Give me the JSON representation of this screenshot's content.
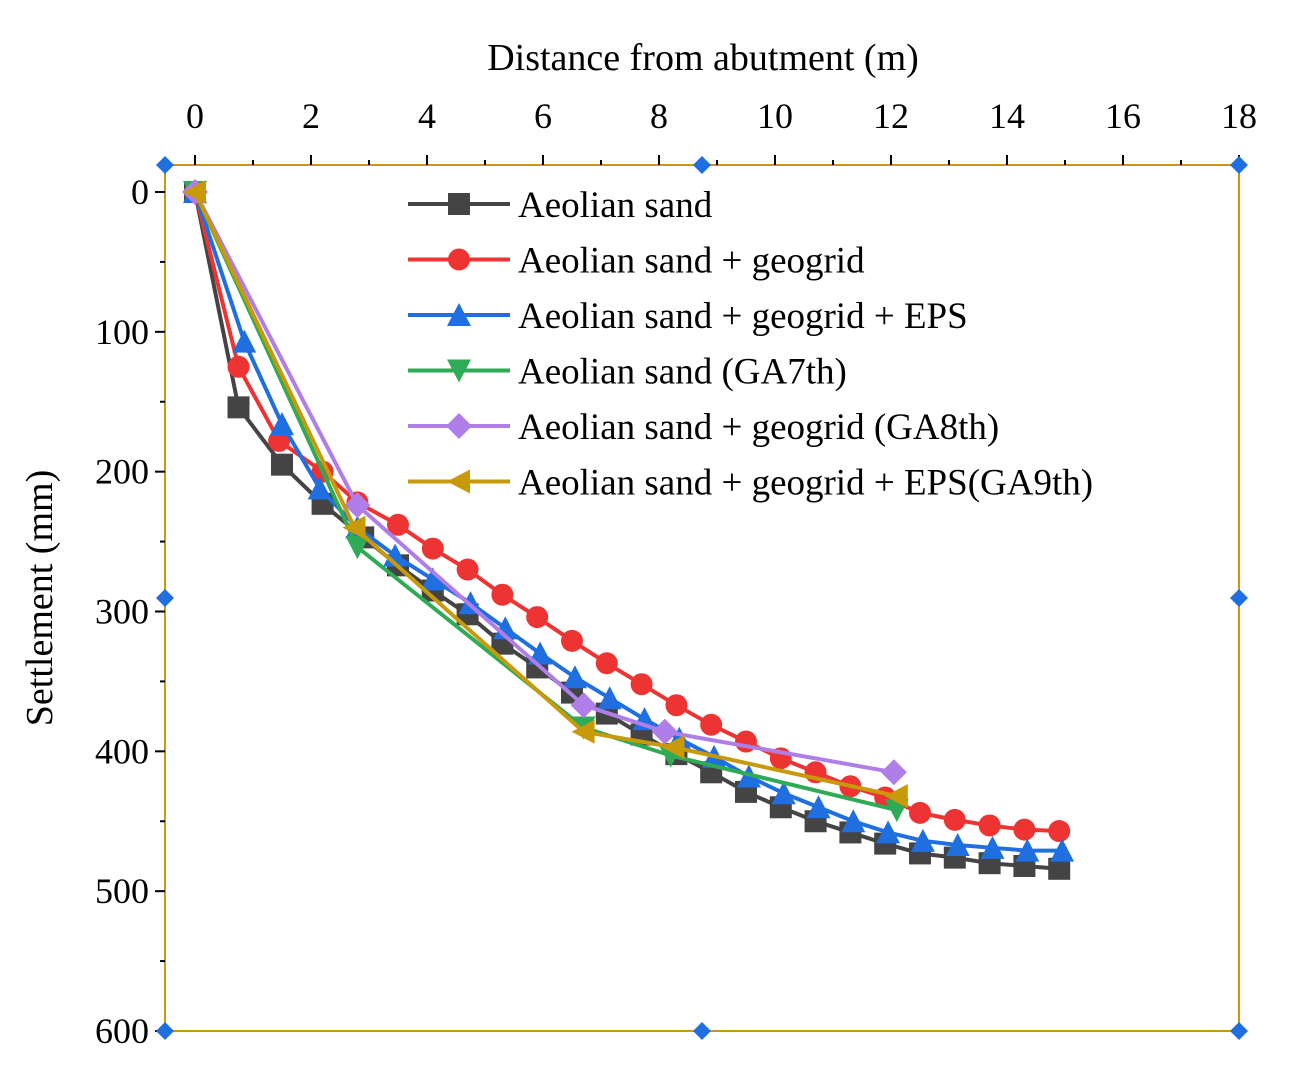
{
  "chart_data": {
    "type": "line",
    "title": "",
    "xlabel": "Distance from abutment (m)",
    "ylabel": "Settlement (mm)",
    "xlim": [
      -0.5,
      18
    ],
    "ylim": [
      0,
      600
    ],
    "y_inverted": true,
    "x_axis_position": "top",
    "x_ticks": [
      0,
      2,
      4,
      6,
      8,
      10,
      12,
      14,
      16,
      18
    ],
    "y_ticks": [
      0,
      100,
      200,
      300,
      400,
      500,
      600
    ],
    "grid": false,
    "legend_position": "top-right",
    "series": [
      {
        "name": "Aeolian sand",
        "color": "#444444",
        "marker": "square",
        "x": [
          0,
          0.75,
          1.5,
          2.2,
          2.9,
          3.5,
          4.1,
          4.7,
          5.3,
          5.9,
          6.5,
          7.1,
          7.7,
          8.3,
          8.9,
          9.5,
          10.1,
          10.7,
          11.3,
          11.9,
          12.5,
          13.1,
          13.7,
          14.3,
          14.9
        ],
        "values": [
          0,
          154,
          195,
          223,
          247,
          267,
          285,
          302,
          323,
          340,
          358,
          373,
          388,
          402,
          415,
          429,
          440,
          450,
          458,
          466,
          473,
          476,
          480,
          482,
          484
        ]
      },
      {
        "name": "Aeolian sand + geogrid",
        "color": "#ee3333",
        "marker": "circle",
        "x": [
          0,
          0.75,
          1.45,
          2.2,
          2.8,
          3.5,
          4.1,
          4.7,
          5.3,
          5.9,
          6.5,
          7.1,
          7.7,
          8.3,
          8.9,
          9.5,
          10.1,
          10.7,
          11.3,
          11.9,
          12.5,
          13.1,
          13.7,
          14.3,
          14.9
        ],
        "values": [
          0,
          125,
          178,
          200,
          222,
          238,
          255,
          270,
          288,
          304,
          321,
          337,
          352,
          367,
          381,
          393,
          405,
          415,
          425,
          433,
          444,
          449,
          453,
          456,
          457
        ]
      },
      {
        "name": "Aeolian sand + geogrid + EPS",
        "color": "#1f6fe0",
        "marker": "triangle-up",
        "x": [
          0,
          0.85,
          1.5,
          2.15,
          2.8,
          3.45,
          4.1,
          4.75,
          5.35,
          5.95,
          6.55,
          7.15,
          7.75,
          8.35,
          8.95,
          9.55,
          10.15,
          10.75,
          11.35,
          11.95,
          12.55,
          13.15,
          13.75,
          14.35,
          14.95
        ],
        "values": [
          0,
          107,
          166,
          212,
          240,
          260,
          277,
          294,
          312,
          330,
          347,
          362,
          377,
          391,
          404,
          418,
          430,
          440,
          450,
          458,
          464,
          467,
          469,
          471,
          471
        ]
      },
      {
        "name": "Aeolian sand (GA7th)",
        "color": "#2faa55",
        "marker": "triangle-down",
        "x": [
          0,
          2.8,
          6.7,
          8.2,
          12.1
        ],
        "values": [
          0,
          254,
          383,
          403,
          442
        ]
      },
      {
        "name": "Aeolian sand + geogrid (GA8th)",
        "color": "#b07ee8",
        "marker": "diamond",
        "x": [
          0,
          2.8,
          6.7,
          8.1,
          12.05
        ],
        "values": [
          0,
          224,
          367,
          386,
          415
        ]
      },
      {
        "name": "Aeolian sand + geogrid + EPS(GA9th)",
        "color": "#c89a0a",
        "marker": "triangle-left",
        "x": [
          0,
          2.75,
          6.7,
          8.25,
          12.1
        ],
        "values": [
          0,
          240,
          386,
          397,
          432
        ]
      }
    ]
  }
}
